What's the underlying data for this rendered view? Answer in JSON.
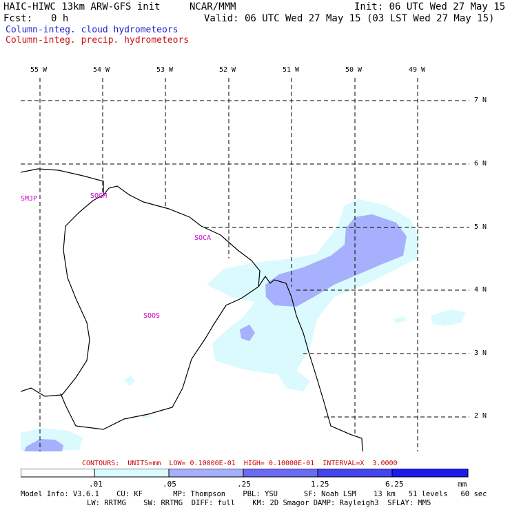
{
  "header": {
    "title": "HAIC-HIWC 13km ARW-GFS init",
    "org": "NCAR/MMM",
    "init": "Init: 06 UTC Wed 27 May 15",
    "fcst_label": "Fcst:",
    "fcst_value": "0 h",
    "valid": "Valid: 06 UTC Wed 27 May 15 (03 LST Wed 27 May 15)",
    "field1": "Column-integ. cloud hydrometeors",
    "field2": "Column-integ. precip. hydrometeors"
  },
  "map": {
    "lon_labels": [
      "55 W",
      "54 W",
      "53 W",
      "52 W",
      "51 W",
      "50 W",
      "49 W"
    ],
    "lat_labels": [
      "7 N",
      "6 N",
      "5 N",
      "4 N",
      "3 N",
      "2 N"
    ],
    "stations": [
      "SMJP",
      "SOGM",
      "SOCA",
      "SOOS"
    ],
    "colors": {
      "fill_light": "#dafafe",
      "fill_mid": "#a6b0fc",
      "fill_dark": "#6a6af2",
      "fill_max": "#1b1bee",
      "coast": "#000000",
      "grid": "#000000",
      "station": "#cc00cc"
    }
  },
  "footer": {
    "contours": "CONTOURS:  UNITS=mm  LOW= 0.10000E-01  HIGH= 0.10000E-01  INTERVAL=X  3.0000",
    "legend_ticks": [
      ".01",
      ".05",
      ".25",
      "1.25",
      "6.25",
      "mm"
    ],
    "model_line1": "Model Info: V3.6.1    CU: KF       MP: Thompson    PBL: YSU      SF: Noah LSM    13 km   51 levels   60 sec",
    "model_line2": "LW: RRTMG    SW: RRTMG  DIFF: full    KM: 2D Smagor DAMP: Rayleigh3  SFLAY: MM5"
  }
}
